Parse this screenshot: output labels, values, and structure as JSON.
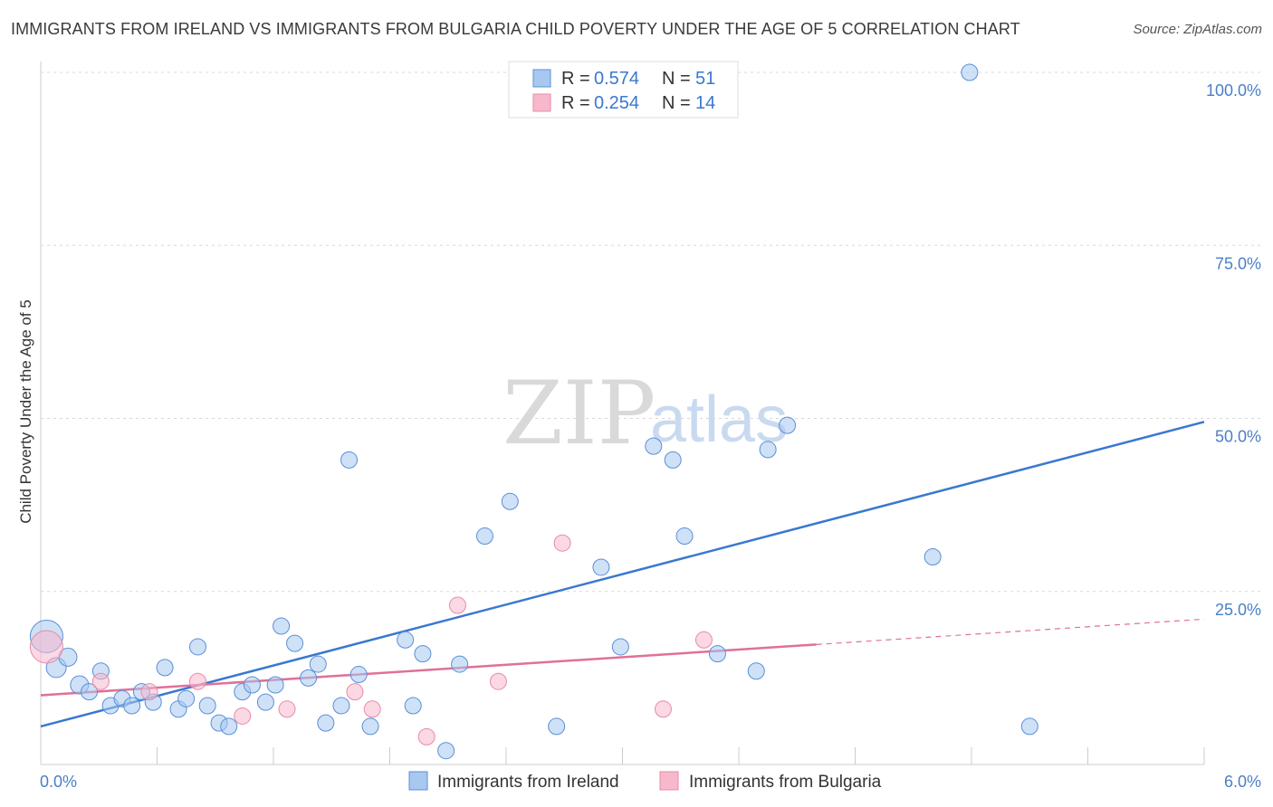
{
  "title": "IMMIGRANTS FROM IRELAND VS IMMIGRANTS FROM BULGARIA CHILD POVERTY UNDER THE AGE OF 5 CORRELATION CHART",
  "source": "Source: ZipAtlas.com",
  "watermark": {
    "zip": "ZIP",
    "atlas": "atlas"
  },
  "legend": {
    "r_label": "R =",
    "n_label": "N =",
    "rows": [
      {
        "r": "0.574",
        "n": "51",
        "color": "#a8c8f0"
      },
      {
        "r": "0.254",
        "n": "14",
        "color": "#f8b8cc"
      }
    ]
  },
  "chart_data": {
    "type": "scatter",
    "title": "IMMIGRANTS FROM IRELAND VS IMMIGRANTS FROM BULGARIA CHILD POVERTY UNDER THE AGE OF 5 CORRELATION CHART",
    "xlabel": "",
    "ylabel": "Child Poverty Under the Age of 5",
    "xlim": [
      0,
      6
    ],
    "ylim": [
      0,
      103
    ],
    "x_tick_labels": [
      "0.0%",
      "6.0%"
    ],
    "y_ticks": [
      25,
      50,
      75,
      100
    ],
    "y_tick_labels": [
      "25.0%",
      "50.0%",
      "75.0%",
      "100.0%"
    ],
    "grid": true,
    "legend_position": "top-center",
    "series": [
      {
        "name": "Immigrants from Ireland",
        "color": "#a8c8f0",
        "edge": "#5a8fd8",
        "trend_color": "#3a78d0",
        "trend": {
          "x": [
            0,
            6
          ],
          "y": [
            5.5,
            49.5
          ],
          "dashed_from": null
        },
        "points": [
          [
            0.03,
            18.5,
            18
          ],
          [
            0.08,
            14,
            11
          ],
          [
            0.14,
            15.5,
            10
          ],
          [
            0.2,
            11.5,
            10
          ],
          [
            0.25,
            10.5,
            9
          ],
          [
            0.31,
            13.5,
            9
          ],
          [
            0.36,
            8.5,
            9
          ],
          [
            0.42,
            9.5,
            9
          ],
          [
            0.47,
            8.5,
            9
          ],
          [
            0.52,
            10.5,
            9
          ],
          [
            0.58,
            9,
            9
          ],
          [
            0.64,
            14,
            9
          ],
          [
            0.71,
            8,
            9
          ],
          [
            0.75,
            9.5,
            9
          ],
          [
            0.81,
            17,
            9
          ],
          [
            0.86,
            8.5,
            9
          ],
          [
            0.92,
            6,
            9
          ],
          [
            0.97,
            5.5,
            9
          ],
          [
            1.04,
            10.5,
            9
          ],
          [
            1.09,
            11.5,
            9
          ],
          [
            1.16,
            9,
            9
          ],
          [
            1.21,
            11.5,
            9
          ],
          [
            1.24,
            20,
            9
          ],
          [
            1.31,
            17.5,
            9
          ],
          [
            1.38,
            12.5,
            9
          ],
          [
            1.43,
            14.5,
            9
          ],
          [
            1.47,
            6,
            9
          ],
          [
            1.55,
            8.5,
            9
          ],
          [
            1.59,
            44,
            9
          ],
          [
            1.64,
            13,
            9
          ],
          [
            1.7,
            5.5,
            9
          ],
          [
            1.88,
            18,
            9
          ],
          [
            1.92,
            8.5,
            9
          ],
          [
            1.97,
            16,
            9
          ],
          [
            2.09,
            2,
            9
          ],
          [
            2.16,
            14.5,
            9
          ],
          [
            2.29,
            33,
            9
          ],
          [
            2.42,
            38,
            9
          ],
          [
            2.66,
            5.5,
            9
          ],
          [
            2.89,
            28.5,
            9
          ],
          [
            2.99,
            17,
            9
          ],
          [
            3.16,
            46,
            9
          ],
          [
            3.26,
            44,
            9
          ],
          [
            3.32,
            33,
            9
          ],
          [
            3.49,
            16,
            9
          ],
          [
            3.69,
            13.5,
            9
          ],
          [
            3.75,
            45.5,
            9
          ],
          [
            3.85,
            49,
            9
          ],
          [
            4.6,
            30,
            9
          ],
          [
            4.79,
            100,
            9
          ],
          [
            5.1,
            5.5,
            9
          ]
        ]
      },
      {
        "name": "Immigrants from Bulgaria",
        "color": "#f8b8cc",
        "edge": "#e88aa8",
        "trend_color": "#e07098",
        "trend": {
          "x": [
            0,
            6
          ],
          "y": [
            10,
            21
          ],
          "dashed_from": 4
        },
        "points": [
          [
            0.03,
            17,
            18
          ],
          [
            0.31,
            12,
            9
          ],
          [
            0.56,
            10.5,
            9
          ],
          [
            0.81,
            12,
            9
          ],
          [
            1.04,
            7,
            9
          ],
          [
            1.27,
            8,
            9
          ],
          [
            1.62,
            10.5,
            9
          ],
          [
            1.71,
            8,
            9
          ],
          [
            1.99,
            4,
            9
          ],
          [
            2.15,
            23,
            9
          ],
          [
            2.36,
            12,
            9
          ],
          [
            2.69,
            32,
            9
          ],
          [
            3.21,
            8,
            9
          ],
          [
            3.42,
            18,
            9
          ]
        ]
      }
    ]
  }
}
